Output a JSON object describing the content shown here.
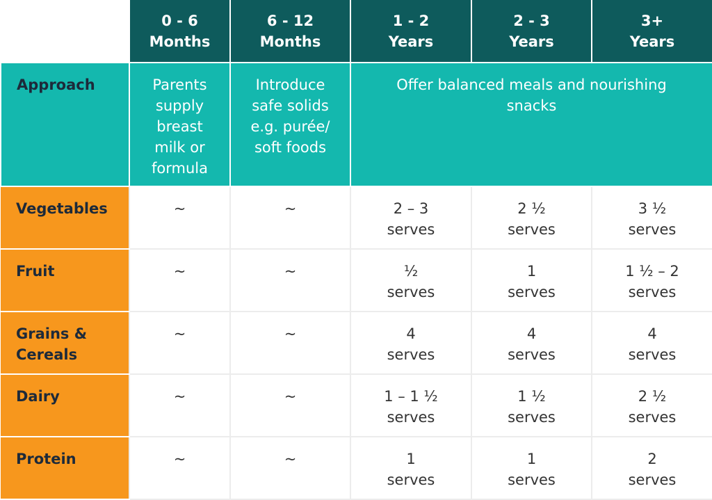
{
  "table": {
    "header": [
      "0 - 6\nMonths",
      "6 - 12\nMonths",
      "1 - 2\nYears",
      "2 - 3\nYears",
      "3+\nYears"
    ],
    "approach": {
      "label": "Approach",
      "cells": [
        "Parents\nsupply\nbreast\nmilk or\nformula",
        "Introduce\nsafe solids\ne.g. purée/\nsoft foods",
        "Offer balanced meals and nourishing\nsnacks"
      ]
    },
    "rows": [
      {
        "label": "Vegetables",
        "cells": [
          "~",
          "~",
          "2 – 3\nserves",
          "2 ½\nserves",
          "3 ½\nserves"
        ]
      },
      {
        "label": "Fruit",
        "cells": [
          "~",
          "~",
          "½\nserves",
          "1\nserves",
          "1 ½ – 2\nserves"
        ]
      },
      {
        "label": "Grains &\nCereals",
        "cells": [
          "~",
          "~",
          "4\nserves",
          "4\nserves",
          "4\nserves"
        ]
      },
      {
        "label": "Dairy",
        "cells": [
          "~",
          "~",
          "1 – 1 ½\nserves",
          "1 ½\nserves",
          "2 ½\nserves"
        ]
      },
      {
        "label": "Protein",
        "cells": [
          "~",
          "~",
          "1\nserves",
          "1\nserves",
          "2\nserves"
        ]
      }
    ]
  }
}
